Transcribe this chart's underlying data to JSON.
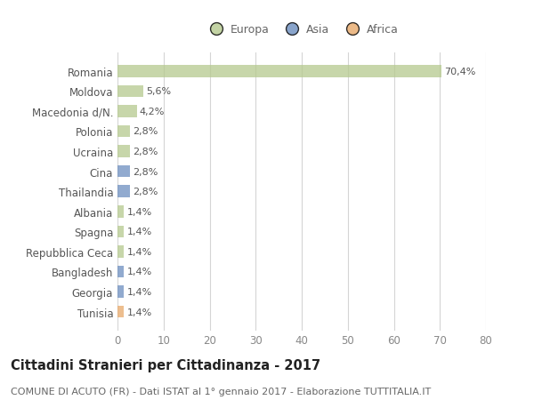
{
  "title": "Cittadini Stranieri per Cittadinanza - 2017",
  "subtitle": "COMUNE DI ACUTO (FR) - Dati ISTAT al 1° gennaio 2017 - Elaborazione TUTTITALIA.IT",
  "categories": [
    "Romania",
    "Moldova",
    "Macedonia d/N.",
    "Polonia",
    "Ucraina",
    "Cina",
    "Thailandia",
    "Albania",
    "Spagna",
    "Repubblica Ceca",
    "Bangladesh",
    "Georgia",
    "Tunisia"
  ],
  "values": [
    70.4,
    5.6,
    4.2,
    2.8,
    2.8,
    2.8,
    2.8,
    1.4,
    1.4,
    1.4,
    1.4,
    1.4,
    1.4
  ],
  "labels": [
    "70,4%",
    "5,6%",
    "4,2%",
    "2,8%",
    "2,8%",
    "2,8%",
    "2,8%",
    "1,4%",
    "1,4%",
    "1,4%",
    "1,4%",
    "1,4%",
    "1,4%"
  ],
  "colors": [
    "#b5c98e",
    "#b5c98e",
    "#b5c98e",
    "#b5c98e",
    "#b5c98e",
    "#6c8ebf",
    "#6c8ebf",
    "#b5c98e",
    "#b5c98e",
    "#b5c98e",
    "#6c8ebf",
    "#6c8ebf",
    "#e8a96a"
  ],
  "legend": [
    {
      "label": "Europa",
      "color": "#b5c98e"
    },
    {
      "label": "Asia",
      "color": "#6c8ebf"
    },
    {
      "label": "Africa",
      "color": "#e8a96a"
    }
  ],
  "xlim": [
    0,
    80
  ],
  "xticks": [
    0,
    10,
    20,
    30,
    40,
    50,
    60,
    70,
    80
  ],
  "background_color": "#ffffff",
  "grid_color": "#d5d5d5",
  "bar_height": 0.6,
  "title_fontsize": 10.5,
  "subtitle_fontsize": 8,
  "tick_fontsize": 8.5,
  "label_fontsize": 8,
  "legend_fontsize": 9
}
